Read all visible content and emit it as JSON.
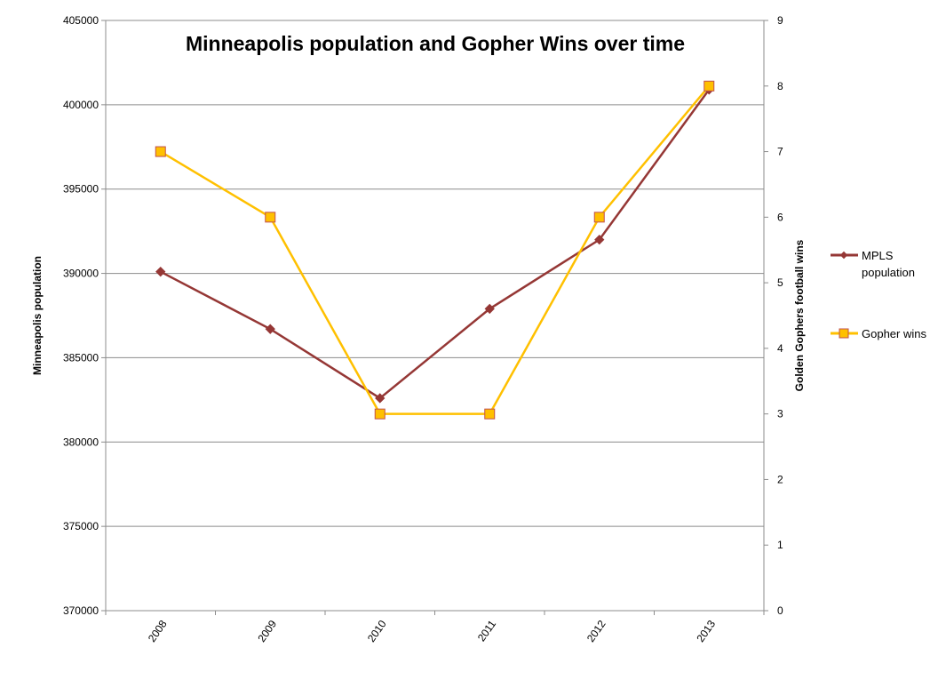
{
  "chart_data": {
    "type": "line",
    "title": "Minneapolis population and Gopher Wins over time",
    "xlabel": "",
    "ylabel": "Minneapolis population",
    "y2label": "Golden Gophers football wins",
    "categories": [
      "2008",
      "2009",
      "2010",
      "2011",
      "2012",
      "2013"
    ],
    "ylim": [
      370000,
      405000
    ],
    "yticks": [
      "370000",
      "375000",
      "380000",
      "385000",
      "390000",
      "395000",
      "400000",
      "405000"
    ],
    "y2lim": [
      0,
      9
    ],
    "y2ticks": [
      "0",
      "1",
      "2",
      "3",
      "4",
      "5",
      "6",
      "7",
      "8",
      "9"
    ],
    "grid": true,
    "legend_position": "right",
    "series": [
      {
        "name": "MPLS population",
        "axis": "left",
        "marker": "diamond",
        "color": "#953735",
        "values": [
          390100,
          386700,
          382600,
          387900,
          392000,
          400900
        ]
      },
      {
        "name": "Gopher wins",
        "axis": "right",
        "marker": "square",
        "color": "#FFC000",
        "marker_fill": "#FFC000",
        "marker_edge": "#C0504D",
        "values": [
          7,
          6,
          3,
          3,
          6,
          8
        ]
      }
    ],
    "legend": [
      "MPLS population",
      "Gopher wins"
    ]
  }
}
